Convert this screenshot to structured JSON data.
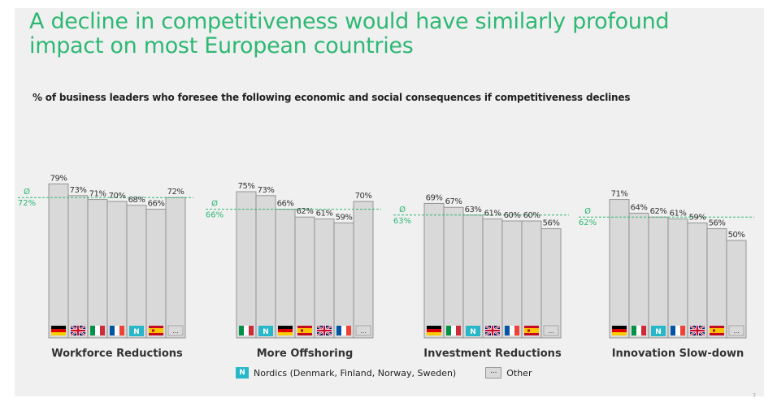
{
  "title": "A decline in competitiveness would have similarly profound impact on most European countries",
  "subtitle": "% of business leaders who foresee the following economic and social consequences if competitiveness declines",
  "legend": {
    "nordic_symbol": "N",
    "nordic_label": "Nordics (Denmark, Finland, Norway, Sweden)",
    "other_symbol": "...",
    "other_label": "Other"
  },
  "page_number": "7",
  "colors": {
    "green": "#2eb873",
    "bar": "#d9d9d9",
    "bar_border": "#8c8c8c",
    "nordic": "#27b7c8"
  },
  "chart_data": [
    {
      "type": "bar",
      "title": "Workforce Reductions",
      "avg_symbol": "Ø",
      "avg_value": 72,
      "avg_label": "72%",
      "categories": [
        "Germany",
        "United Kingdom",
        "Italy",
        "France",
        "Nordics",
        "Spain",
        "Other"
      ],
      "values": [
        79,
        73,
        71,
        70,
        68,
        66,
        72
      ],
      "labels": [
        "79%",
        "73%",
        "71%",
        "70%",
        "68%",
        "66%",
        "72%"
      ],
      "ylim": [
        0,
        100
      ]
    },
    {
      "type": "bar",
      "title": "More Offshoring",
      "avg_symbol": "Ø",
      "avg_value": 66,
      "avg_label": "66%",
      "categories": [
        "Italy",
        "Nordics",
        "Germany",
        "Spain",
        "United Kingdom",
        "France",
        "Other"
      ],
      "values": [
        75,
        73,
        66,
        62,
        61,
        59,
        70
      ],
      "labels": [
        "75%",
        "73%",
        "66%",
        "62%",
        "61%",
        "59%",
        "70%"
      ],
      "ylim": [
        0,
        100
      ]
    },
    {
      "type": "bar",
      "title": "Investment Reductions",
      "avg_symbol": "Ø",
      "avg_value": 63,
      "avg_label": "63%",
      "categories": [
        "Germany",
        "Italy",
        "Nordics",
        "United Kingdom",
        "France",
        "Spain",
        "Other"
      ],
      "values": [
        69,
        67,
        63,
        61,
        60,
        60,
        56
      ],
      "labels": [
        "69%",
        "67%",
        "63%",
        "61%",
        "60%",
        "60%",
        "56%"
      ],
      "ylim": [
        0,
        100
      ]
    },
    {
      "type": "bar",
      "title": "Innovation Slow-down",
      "avg_symbol": "Ø",
      "avg_value": 62,
      "avg_label": "62%",
      "categories": [
        "Germany",
        "Italy",
        "Nordics",
        "France",
        "United Kingdom",
        "Spain",
        "Other"
      ],
      "values": [
        71,
        64,
        62,
        61,
        59,
        56,
        50
      ],
      "labels": [
        "71%",
        "64%",
        "62%",
        "61%",
        "59%",
        "56%",
        "50%"
      ],
      "ylim": [
        0,
        100
      ]
    }
  ]
}
